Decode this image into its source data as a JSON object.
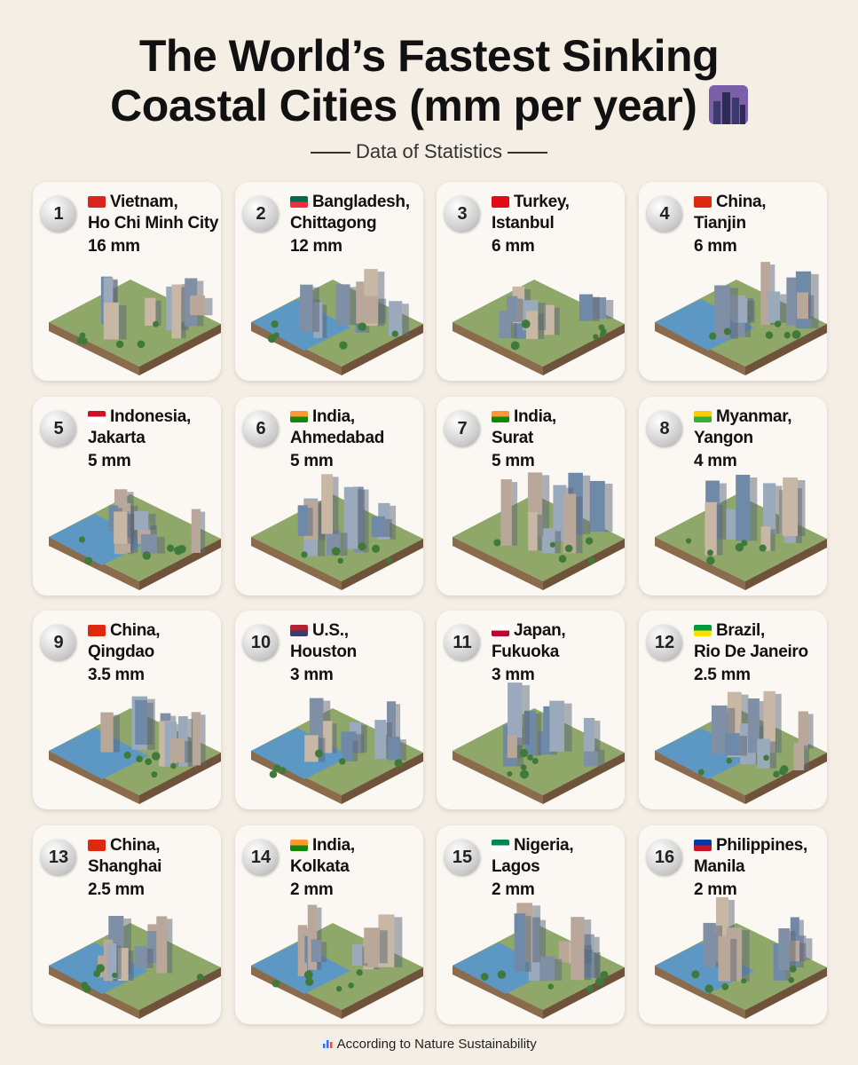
{
  "header": {
    "title_line1": "The World’s Fastest Sinking",
    "title_line2": "Coastal Cities (mm per year)",
    "subtitle": "Data of Statistics"
  },
  "cities": [
    {
      "rank": 1,
      "country": "Vietnam,",
      "city": "Ho Chi Minh City",
      "value": "16 mm"
    },
    {
      "rank": 2,
      "country": "Bangladesh,",
      "city": "Chittagong",
      "value": "12 mm"
    },
    {
      "rank": 3,
      "country": "Turkey,",
      "city": "Istanbul",
      "value": "6 mm"
    },
    {
      "rank": 4,
      "country": "China,",
      "city": "Tianjin",
      "value": "6 mm"
    },
    {
      "rank": 5,
      "country": "Indonesia,",
      "city": "Jakarta",
      "value": "5 mm"
    },
    {
      "rank": 6,
      "country": "India,",
      "city": "Ahmedabad",
      "value": "5 mm"
    },
    {
      "rank": 7,
      "country": "India,",
      "city": "Surat",
      "value": "5 mm"
    },
    {
      "rank": 8,
      "country": "Myanmar,",
      "city": "Yangon",
      "value": "4 mm"
    },
    {
      "rank": 9,
      "country": "China,",
      "city": "Qingdao",
      "value": "3.5 mm"
    },
    {
      "rank": 10,
      "country": "U.S.,",
      "city": "Houston",
      "value": "3 mm"
    },
    {
      "rank": 11,
      "country": "Japan,",
      "city": "Fukuoka",
      "value": "3 mm"
    },
    {
      "rank": 12,
      "country": "Brazil,",
      "city": "Rio De Janeiro",
      "value": "2.5 mm"
    },
    {
      "rank": 13,
      "country": "China,",
      "city": "Shanghai",
      "value": "2.5 mm"
    },
    {
      "rank": 14,
      "country": "India,",
      "city": "Kolkata",
      "value": "2 mm"
    },
    {
      "rank": 15,
      "country": "Nigeria,",
      "city": "Lagos",
      "value": "2 mm"
    },
    {
      "rank": 16,
      "country": "Philippines,",
      "city": "Manila",
      "value": "2 mm"
    }
  ],
  "footer": "According to Nature Sustainability"
}
